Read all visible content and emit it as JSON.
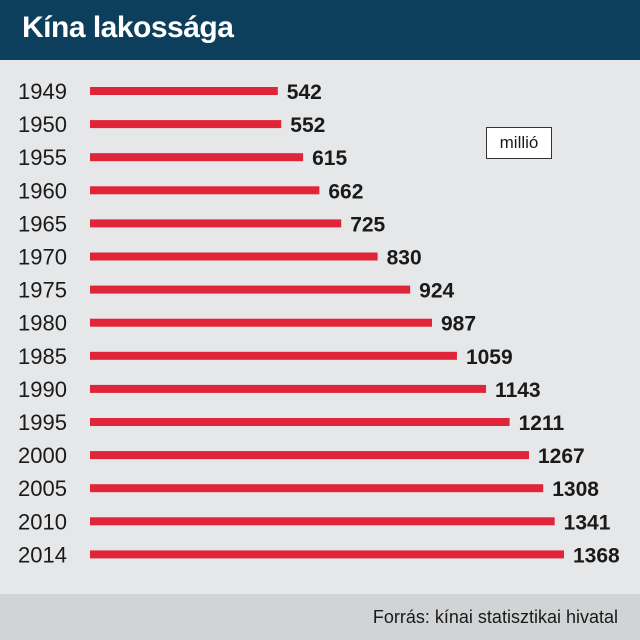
{
  "chart_data": {
    "type": "bar",
    "orientation": "horizontal",
    "title": "Kína lakossága",
    "unit": "millió",
    "source": "Forrás: kínai statisztikai hivatal",
    "categories": [
      "1949",
      "1950",
      "1955",
      "1960",
      "1965",
      "1970",
      "1975",
      "1980",
      "1985",
      "1990",
      "1995",
      "2000",
      "2005",
      "2010",
      "2014"
    ],
    "values": [
      542,
      552,
      615,
      662,
      725,
      830,
      924,
      987,
      1059,
      1143,
      1211,
      1267,
      1308,
      1341,
      1368
    ],
    "bar_color": "#e0243a",
    "header_color": "#0d3f5d",
    "background_color": "#e6e7e8"
  }
}
